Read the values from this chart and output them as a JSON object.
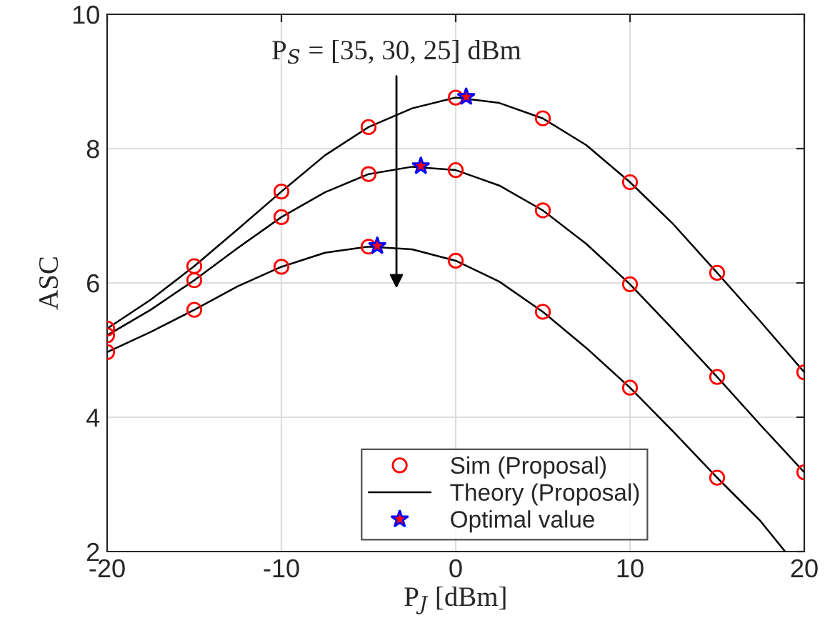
{
  "chart_data": {
    "type": "line",
    "xlabel": "P$_{J}$ [dBm]",
    "ylabel": "ASC",
    "xlim": [
      -20,
      20
    ],
    "ylim": [
      2,
      10
    ],
    "xticks": [
      -20,
      -10,
      0,
      10,
      20
    ],
    "yticks": [
      2,
      4,
      6,
      8,
      10
    ],
    "grid": true,
    "legend": "bottom",
    "annotations": [
      "P$_{S}$ = [35, 30, 25] dBm"
    ],
    "series": [
      {
        "name": "Sim (Proposal)",
        "type": "scatter",
        "marker": "circle",
        "color": "#ff0000",
        "x": [
          -20,
          -15,
          -10,
          -5,
          0,
          5,
          10,
          15,
          20
        ],
        "values": [
          5.32,
          6.25,
          7.36,
          8.32,
          8.76,
          8.45,
          7.5,
          6.15,
          4.67
        ]
      },
      {
        "type": "scatter",
        "marker": "circle",
        "color": "#ff0000",
        "x": [
          -20,
          -15,
          -10,
          -5,
          0,
          5,
          10,
          15,
          20
        ],
        "values": [
          5.22,
          6.04,
          6.98,
          7.62,
          7.68,
          7.08,
          5.98,
          4.6,
          3.18
        ]
      },
      {
        "type": "scatter",
        "marker": "circle",
        "color": "#ff0000",
        "x": [
          -20,
          -15,
          -10,
          -5,
          0,
          5,
          10,
          15
        ],
        "values": [
          4.97,
          5.6,
          6.24,
          6.54,
          6.33,
          5.57,
          4.44,
          3.1
        ]
      },
      {
        "name": "Theory (Proposal)",
        "marker": "none",
        "color": "#000000",
        "x": [
          -20,
          -17.5,
          -15,
          -12.5,
          -10,
          -7.5,
          -5,
          -2.5,
          0,
          2.5,
          5,
          7.5,
          10,
          12.5,
          15,
          17.5,
          20
        ],
        "values": [
          5.32,
          5.75,
          6.25,
          6.8,
          7.36,
          7.9,
          8.32,
          8.6,
          8.76,
          8.68,
          8.45,
          8.05,
          7.5,
          6.87,
          6.15,
          5.42,
          4.67
        ]
      },
      {
        "marker": "none",
        "color": "#000000",
        "x": [
          -20,
          -17.5,
          -15,
          -12.5,
          -10,
          -7.5,
          -5,
          -2.5,
          0,
          2.5,
          5,
          7.5,
          10,
          12.5,
          15,
          17.5,
          20
        ],
        "values": [
          5.22,
          5.6,
          6.04,
          6.52,
          6.98,
          7.35,
          7.62,
          7.73,
          7.68,
          7.45,
          7.08,
          6.58,
          5.98,
          5.3,
          4.6,
          3.88,
          3.18
        ]
      },
      {
        "marker": "none",
        "color": "#000000",
        "x": [
          -20,
          -17.5,
          -15,
          -12.5,
          -10,
          -7.5,
          -5,
          -2.5,
          0,
          2.5,
          5,
          7.5,
          10,
          12.5,
          15,
          17.5,
          18.9
        ],
        "values": [
          4.97,
          5.27,
          5.6,
          5.95,
          6.24,
          6.45,
          6.54,
          6.5,
          6.33,
          6.02,
          5.57,
          5.03,
          4.44,
          3.78,
          3.1,
          2.45,
          2.0
        ]
      },
      {
        "name": "Optimal value",
        "type": "scatter",
        "marker": "star",
        "color": "#0000ff",
        "x": [
          0.6,
          -2.0,
          -4.5
        ],
        "values": [
          8.77,
          7.74,
          6.55
        ]
      }
    ]
  }
}
